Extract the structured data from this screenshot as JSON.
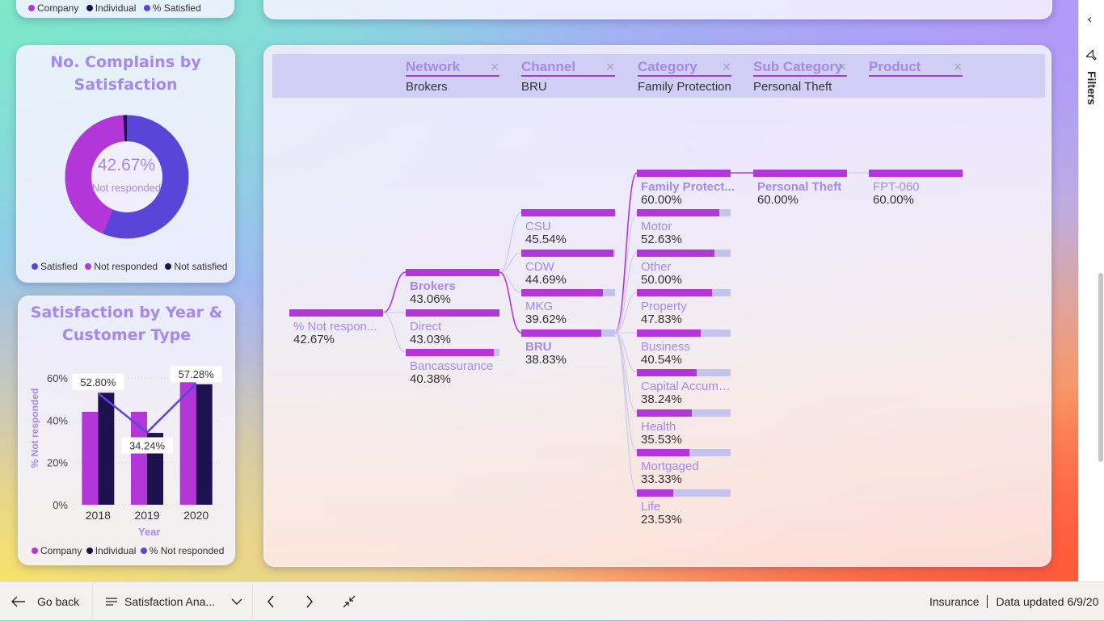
{
  "top_left_legend": [
    {
      "label": "Company",
      "color": "#b337d8"
    },
    {
      "label": "Individual",
      "color": "#1e1150"
    },
    {
      "label": "% Satisfied",
      "color": "#5b44d8"
    }
  ],
  "donut_card": {
    "title_line1": "No. Complains by",
    "title_line2": "Satisfaction",
    "center_value": "42.67%",
    "center_label": "Not responded",
    "slices": [
      {
        "label": "Satisfied",
        "value": 56.33,
        "color": "#5b44d8"
      },
      {
        "label": "Not responded",
        "value": 42.67,
        "color": "#b337d8"
      },
      {
        "label": "Not satisfied",
        "value": 1.0,
        "color": "#1e1150"
      }
    ],
    "legend": [
      {
        "label": "Satisfied",
        "color": "#5b44d8"
      },
      {
        "label": "Not responded",
        "color": "#b337d8"
      },
      {
        "label": "Not satisfied",
        "color": "#1e1150"
      }
    ]
  },
  "bar_card": {
    "title_line1": "Satisfaction by Year &",
    "title_line2": "Customer Type",
    "ylabel": "% Not responded",
    "xlabel": "Year",
    "yticks": [
      "0%",
      "20%",
      "40%",
      "60%"
    ],
    "legend": [
      {
        "label": "Company",
        "color": "#b337d8"
      },
      {
        "label": "Individual",
        "color": "#1e1150"
      },
      {
        "label": "% Not responded",
        "color": "#5b44d8"
      }
    ]
  },
  "chart_data": {
    "type": "bar",
    "title": "Satisfaction by Year & Customer Type",
    "xlabel": "Year",
    "ylabel": "% Not responded",
    "categories": [
      "2018",
      "2019",
      "2020"
    ],
    "ylim": [
      0,
      65
    ],
    "series": [
      {
        "name": "Company",
        "type": "bar",
        "color": "#b337d8",
        "values": [
          44,
          44,
          59
        ]
      },
      {
        "name": "Individual",
        "type": "bar",
        "color": "#1e1150",
        "values": [
          53,
          34,
          57
        ]
      },
      {
        "name": "% Not responded",
        "type": "line",
        "color": "#5b44d8",
        "values": [
          52.8,
          34.24,
          57.28
        ],
        "labels": [
          "52.80%",
          "34.24%",
          "57.28%"
        ]
      }
    ]
  },
  "tree": {
    "headers": [
      {
        "name": "Network",
        "value": "Brokers"
      },
      {
        "name": "Channel",
        "value": "BRU"
      },
      {
        "name": "Category",
        "value": "Family Protection"
      },
      {
        "name": "Sub Category",
        "value": "Personal Theft"
      },
      {
        "name": "Product",
        "value": ""
      }
    ],
    "close_glyph": "×",
    "root": {
      "name": "% Not respon...",
      "value": "42.67%",
      "pct": 1.0
    },
    "network": [
      {
        "name": "Brokers",
        "value": "43.06%",
        "pct": 1.0,
        "bold": true
      },
      {
        "name": "Direct",
        "value": "43.03%",
        "pct": 1.0,
        "bold": false
      },
      {
        "name": "Bancassurance",
        "value": "40.38%",
        "pct": 0.94,
        "bold": false
      }
    ],
    "channel": [
      {
        "name": "CSU",
        "value": "45.54%",
        "pct": 1.0,
        "bold": false
      },
      {
        "name": "CDW",
        "value": "44.69%",
        "pct": 0.98,
        "bold": false
      },
      {
        "name": "MKG",
        "value": "39.62%",
        "pct": 0.87,
        "bold": false
      },
      {
        "name": "BRU",
        "value": "38.83%",
        "pct": 0.85,
        "bold": true
      }
    ],
    "category": [
      {
        "name": "Family Protect...",
        "value": "60.00%",
        "pct": 1.0,
        "bold": true
      },
      {
        "name": "Motor",
        "value": "52.63%",
        "pct": 0.88,
        "bold": false
      },
      {
        "name": "Other",
        "value": "50.00%",
        "pct": 0.83,
        "bold": false
      },
      {
        "name": "Property",
        "value": "47.83%",
        "pct": 0.8,
        "bold": false
      },
      {
        "name": "Business",
        "value": "40.54%",
        "pct": 0.68,
        "bold": false
      },
      {
        "name": "Capital Accumu...",
        "value": "38.24%",
        "pct": 0.64,
        "bold": false
      },
      {
        "name": "Health",
        "value": "35.53%",
        "pct": 0.59,
        "bold": false
      },
      {
        "name": "Mortgaged",
        "value": "33.33%",
        "pct": 0.56,
        "bold": false
      },
      {
        "name": "Life",
        "value": "23.53%",
        "pct": 0.39,
        "bold": false
      }
    ],
    "subcategory": [
      {
        "name": "Personal Theft",
        "value": "60.00%",
        "pct": 1.0,
        "bold": true
      }
    ],
    "product": [
      {
        "name": "FPT-060",
        "value": "60.00%",
        "pct": 1.0,
        "bold": false
      }
    ]
  },
  "bottombar": {
    "go_back": "Go back",
    "page_name": "Satisfaction Ana...",
    "workspace": "Insurance",
    "updated": "Data updated 6/9/20"
  },
  "filters_pane": {
    "label": "Filters"
  }
}
